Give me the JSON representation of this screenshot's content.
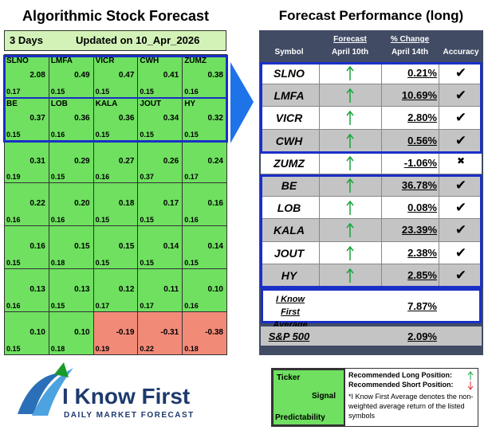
{
  "left": {
    "title": "Algorithmic Stock Forecast",
    "period": "3 Days",
    "updated": "Updated on 10_Apr_2026",
    "rows": [
      [
        {
          "ticker": "SLNO",
          "signal": "2.08",
          "predictability": "0.17"
        },
        {
          "ticker": "LMFA",
          "signal": "0.49",
          "predictability": "0.15"
        },
        {
          "ticker": "VICR",
          "signal": "0.47",
          "predictability": "0.15"
        },
        {
          "ticker": "CWH",
          "signal": "0.41",
          "predictability": "0.15"
        },
        {
          "ticker": "ZUMZ",
          "signal": "0.38",
          "predictability": "0.16"
        }
      ],
      [
        {
          "ticker": "BE",
          "signal": "0.37",
          "predictability": "0.15"
        },
        {
          "ticker": "LOB",
          "signal": "0.36",
          "predictability": "0.16"
        },
        {
          "ticker": "KALA",
          "signal": "0.36",
          "predictability": "0.15"
        },
        {
          "ticker": "JOUT",
          "signal": "0.34",
          "predictability": "0.15"
        },
        {
          "ticker": "HY",
          "signal": "0.32",
          "predictability": "0.15"
        }
      ],
      [
        {
          "signal": "0.31",
          "predictability": "0.19"
        },
        {
          "signal": "0.29",
          "predictability": "0.15"
        },
        {
          "signal": "0.27",
          "predictability": "0.16"
        },
        {
          "signal": "0.26",
          "predictability": "0.37"
        },
        {
          "signal": "0.24",
          "predictability": "0.17"
        }
      ],
      [
        {
          "signal": "0.22",
          "predictability": "0.16"
        },
        {
          "signal": "0.20",
          "predictability": "0.16"
        },
        {
          "signal": "0.18",
          "predictability": "0.15"
        },
        {
          "signal": "0.17",
          "predictability": "0.15"
        },
        {
          "signal": "0.16",
          "predictability": "0.16"
        }
      ],
      [
        {
          "signal": "0.16",
          "predictability": "0.15"
        },
        {
          "signal": "0.15",
          "predictability": "0.18"
        },
        {
          "signal": "0.15",
          "predictability": "0.15"
        },
        {
          "signal": "0.14",
          "predictability": "0.15"
        },
        {
          "signal": "0.14",
          "predictability": "0.15"
        }
      ],
      [
        {
          "signal": "0.13",
          "predictability": "0.16"
        },
        {
          "signal": "0.13",
          "predictability": "0.15"
        },
        {
          "signal": "0.12",
          "predictability": "0.17"
        },
        {
          "signal": "0.11",
          "predictability": "0.17"
        },
        {
          "signal": "0.10",
          "predictability": "0.16"
        }
      ],
      [
        {
          "signal": "0.10",
          "predictability": "0.15"
        },
        {
          "signal": "0.10",
          "predictability": "0.18"
        },
        {
          "signal": "-0.19",
          "predictability": "0.19"
        },
        {
          "signal": "-0.31",
          "predictability": "0.22"
        },
        {
          "signal": "-0.38",
          "predictability": "0.18"
        }
      ]
    ]
  },
  "right": {
    "title": "Forecast Performance (long)",
    "headers": {
      "symbol": "Symbol",
      "forecast": [
        "Forecast",
        "April 10th"
      ],
      "change": [
        "% Change",
        "April 14th"
      ],
      "accuracy": "Accuracy"
    },
    "rows": [
      {
        "symbol": "SLNO",
        "change": "0.21%",
        "accuracy": "✔"
      },
      {
        "symbol": "LMFA",
        "change": "10.69%",
        "accuracy": "✔"
      },
      {
        "symbol": "VICR",
        "change": "2.80%",
        "accuracy": "✔"
      },
      {
        "symbol": "CWH",
        "change": "0.56%",
        "accuracy": "✔"
      },
      {
        "symbol": "ZUMZ",
        "change": "-1.06%",
        "accuracy": "✖"
      },
      {
        "symbol": "BE",
        "change": "36.78%",
        "accuracy": "✔"
      },
      {
        "symbol": "LOB",
        "change": "0.08%",
        "accuracy": "✔"
      },
      {
        "symbol": "KALA",
        "change": "23.39%",
        "accuracy": "✔"
      },
      {
        "symbol": "JOUT",
        "change": "2.38%",
        "accuracy": "✔"
      },
      {
        "symbol": "HY",
        "change": "2.85%",
        "accuracy": "✔"
      }
    ],
    "average": {
      "label": "I Know First Average",
      "change": "7.87%"
    },
    "benchmark": {
      "label": "S&P 500",
      "change": "2.09%"
    }
  },
  "legend": {
    "ticker": "Ticker",
    "signal": "Signal",
    "predictability": "Predictability",
    "long": "Recommended Long Position:",
    "short": "Recommended Short Position:",
    "note": "*I Know First Average denotes the non-weighted average return of the listed symbols"
  },
  "logo": {
    "name": "I Know First",
    "tagline": "DAILY MARKET FORECAST"
  }
}
